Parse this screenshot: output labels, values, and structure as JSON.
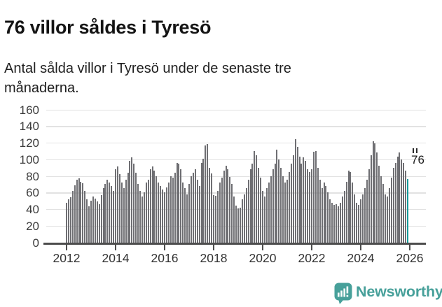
{
  "header": {
    "title": "76 villor såldes i Tyresö",
    "subtitle": "Antal sålda villor i Tyresö under de senaste tre månaderna."
  },
  "chart_data": {
    "type": "bar",
    "title": "76 villor såldes i Tyresö",
    "description": "Antal sålda villor i Tyresö under de senaste tre månaderna.",
    "x_start": "2012-01",
    "x_end": "2025-12",
    "x_interval": "month",
    "ylim": [
      0,
      160
    ],
    "yticks": [
      0,
      20,
      40,
      60,
      80,
      100,
      120,
      140,
      160
    ],
    "xtick_labels": [
      "2012",
      "2014",
      "2016",
      "2018",
      "2020",
      "2022",
      "2024",
      "2026"
    ],
    "grid": "horizontal",
    "legend": "none",
    "bar_color": "#6f6f73",
    "highlight_color": "#109b9b",
    "values": [
      48,
      52,
      54,
      62,
      69,
      75,
      77,
      73,
      71,
      62,
      52,
      43,
      50,
      55,
      53,
      49,
      46,
      57,
      65,
      70,
      75,
      72,
      68,
      62,
      88,
      91,
      82,
      72,
      65,
      75,
      84,
      98,
      102,
      95,
      84,
      70,
      62,
      55,
      60,
      72,
      75,
      88,
      91,
      86,
      80,
      72,
      68,
      64,
      60,
      66,
      72,
      80,
      78,
      84,
      96,
      95,
      88,
      72,
      65,
      58,
      70,
      80,
      84,
      88,
      75,
      68,
      96,
      101,
      117,
      118,
      90,
      83,
      57,
      56,
      62,
      72,
      78,
      86,
      92,
      88,
      79,
      70,
      55,
      44,
      41,
      42,
      52,
      58,
      65,
      75,
      88,
      95,
      110,
      105,
      90,
      78,
      62,
      55,
      65,
      72,
      80,
      88,
      95,
      112,
      100,
      90,
      80,
      72,
      75,
      85,
      95,
      105,
      124,
      115,
      103,
      95,
      102,
      98,
      88,
      85,
      88,
      109,
      110,
      90,
      75,
      65,
      72,
      68,
      60,
      52,
      48,
      45,
      46,
      43,
      48,
      55,
      62,
      73,
      86,
      85,
      72,
      58,
      48,
      45,
      52,
      58,
      65,
      75,
      88,
      105,
      122,
      119,
      108,
      92,
      80,
      70,
      58,
      55,
      65,
      78,
      90,
      96,
      103,
      108,
      100,
      96,
      86,
      76
    ],
    "highlight": {
      "index": 167,
      "value": 76,
      "label": "76"
    }
  },
  "annotation": {
    "value_label": "76",
    "marker_icon": "double-tick-marker"
  },
  "footer": {
    "brand": "Newsworthy",
    "brand_color": "#47a09a",
    "logo_icon": "speech-bubble-bar-chart"
  }
}
